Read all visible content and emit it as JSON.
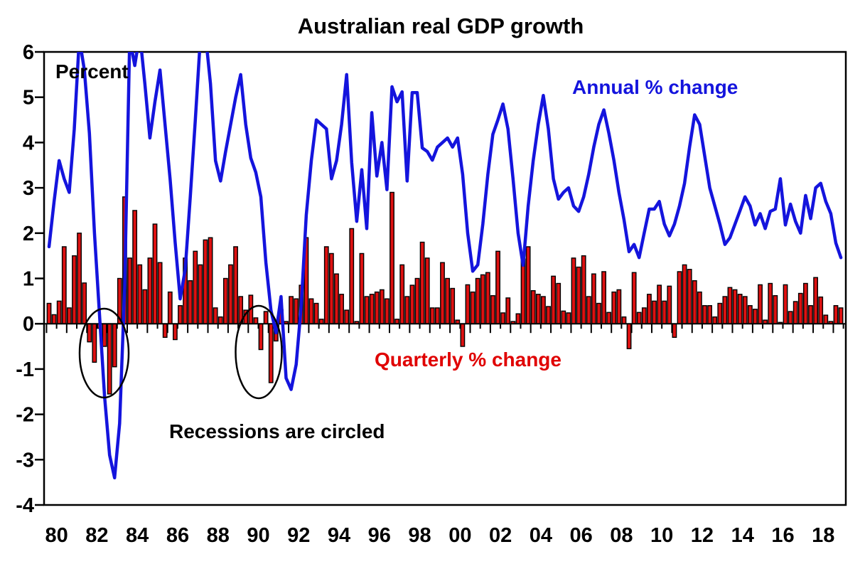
{
  "title": "Australian real GDP growth",
  "labels": {
    "y_axis_unit": "Percent",
    "line_legend": "Annual % change",
    "bar_legend": "Quarterly % change",
    "annotation": "Recessions are circled"
  },
  "colors": {
    "line": "#1414dd",
    "bar_fill": "#dd1111",
    "bar_stroke": "#000000",
    "axis": "#000000",
    "background": "#ffffff"
  },
  "chart_data": {
    "type": "combo-bar-line",
    "frequency": "quarterly",
    "x_start": "1980Q1",
    "x_end": "2019Q2",
    "ylim": [
      -4,
      6
    ],
    "grid": false,
    "y_ticks": [
      6,
      5,
      4,
      3,
      2,
      1,
      0,
      -1,
      -2,
      -3,
      -4
    ],
    "x_tick_labels": [
      "80",
      "82",
      "84",
      "86",
      "88",
      "90",
      "92",
      "94",
      "96",
      "98",
      "00",
      "02",
      "04",
      "06",
      "08",
      "10",
      "12",
      "14",
      "16",
      "18"
    ],
    "series": [
      {
        "name": "Quarterly % change",
        "style": "bar",
        "color": "#dd1111",
        "values": [
          0.45,
          0.2,
          0.5,
          1.7,
          0.35,
          1.5,
          2.0,
          0.9,
          -0.4,
          -0.85,
          -0.1,
          -0.5,
          -1.55,
          -0.95,
          1.0,
          2.8,
          1.45,
          2.5,
          1.3,
          0.75,
          1.45,
          2.2,
          1.35,
          -0.3,
          0.7,
          -0.35,
          0.4,
          1.45,
          0.95,
          1.6,
          1.3,
          1.85,
          1.9,
          0.35,
          0.15,
          1.0,
          1.3,
          1.7,
          0.6,
          0.3,
          0.63,
          0.13,
          -0.57,
          0.27,
          -1.3,
          -0.38,
          0.31,
          0.05,
          0.6,
          0.55,
          0.85,
          1.9,
          0.55,
          0.45,
          0.1,
          1.7,
          1.55,
          1.1,
          0.65,
          0.3,
          2.1,
          0.05,
          1.55,
          0.6,
          0.65,
          0.7,
          0.75,
          0.55,
          2.9,
          0.1,
          1.3,
          0.6,
          0.85,
          1.0,
          1.8,
          1.45,
          0.35,
          0.35,
          1.35,
          1.0,
          0.78,
          0.08,
          -0.5,
          0.86,
          0.7,
          1.0,
          1.08,
          1.13,
          0.62,
          1.6,
          0.24,
          0.57,
          0.05,
          0.22,
          1.43,
          1.7,
          0.73,
          0.65,
          0.6,
          0.38,
          1.05,
          0.89,
          0.28,
          0.24,
          1.45,
          1.25,
          1.5,
          0.6,
          1.1,
          0.45,
          1.15,
          0.25,
          0.7,
          0.75,
          0.15,
          -0.55,
          1.13,
          0.25,
          0.35,
          0.65,
          0.5,
          0.85,
          0.5,
          0.83,
          -0.3,
          1.15,
          1.3,
          1.2,
          0.95,
          0.7,
          0.4,
          0.4,
          0.15,
          0.45,
          0.6,
          0.8,
          0.75,
          0.65,
          0.6,
          0.4,
          0.32,
          0.86,
          0.08,
          0.89,
          0.62,
          0.03,
          0.86,
          0.27,
          0.49,
          0.67,
          0.89,
          0.4,
          1.02,
          0.59,
          0.19,
          0.05,
          0.4,
          0.35
        ]
      },
      {
        "name": "Annual % change",
        "style": "line",
        "color": "#1414dd",
        "values": [
          1.7,
          2.7,
          3.6,
          3.2,
          2.9,
          4.3,
          6.3,
          5.6,
          4.2,
          2.0,
          0.2,
          -1.6,
          -2.9,
          -3.4,
          -2.2,
          0.8,
          6.3,
          5.7,
          6.4,
          5.3,
          4.1,
          4.9,
          5.6,
          4.4,
          3.2,
          1.8,
          0.55,
          1.2,
          2.8,
          4.5,
          6.3,
          6.4,
          5.3,
          3.6,
          3.15,
          3.8,
          4.4,
          5.0,
          5.5,
          4.4,
          3.66,
          3.34,
          2.8,
          1.35,
          0.3,
          -0.2,
          0.6,
          -1.2,
          -1.45,
          -0.9,
          0.4,
          2.4,
          3.6,
          4.5,
          4.4,
          4.3,
          3.2,
          3.6,
          4.4,
          5.5,
          3.56,
          2.26,
          3.4,
          2.1,
          4.66,
          3.26,
          4.0,
          2.96,
          5.23,
          4.9,
          5.12,
          3.15,
          5.1,
          5.1,
          3.88,
          3.8,
          3.61,
          3.9,
          4.0,
          4.1,
          3.9,
          4.1,
          3.3,
          2.0,
          1.16,
          1.3,
          2.2,
          3.3,
          4.18,
          4.5,
          4.85,
          4.3,
          3.2,
          2.0,
          1.29,
          2.6,
          3.6,
          4.4,
          5.04,
          4.3,
          3.2,
          2.75,
          2.9,
          3.0,
          2.6,
          2.48,
          2.8,
          3.3,
          3.9,
          4.4,
          4.72,
          4.2,
          3.6,
          2.9,
          2.3,
          1.59,
          1.75,
          1.46,
          2.0,
          2.53,
          2.53,
          2.7,
          2.2,
          1.94,
          2.2,
          2.6,
          3.1,
          3.9,
          4.61,
          4.4,
          3.7,
          3.0,
          2.6,
          2.2,
          1.75,
          1.9,
          2.2,
          2.5,
          2.8,
          2.6,
          2.18,
          2.43,
          2.1,
          2.48,
          2.53,
          3.2,
          2.18,
          2.64,
          2.26,
          2.0,
          2.83,
          2.32,
          3.0,
          3.1,
          2.7,
          2.43,
          1.78,
          1.46
        ]
      }
    ],
    "annotations": {
      "recession_circles": [
        {
          "label": "1982-83 recession",
          "quarter_center": "1982Q4"
        },
        {
          "label": "1990-91 recession",
          "quarter_center": "1990Q3"
        }
      ]
    }
  }
}
